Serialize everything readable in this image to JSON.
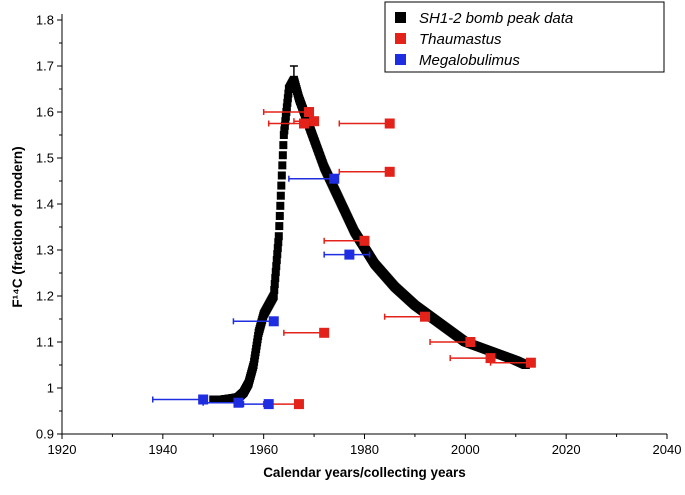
{
  "chart_data": {
    "type": "scatter",
    "xlabel": "Calendar years/collecting years",
    "ylabel": "F¹⁴C (fraction of modern)",
    "xlim": [
      1920,
      2040
    ],
    "ylim": [
      0.9,
      1.8
    ],
    "x_ticks": [
      "1920",
      "1940",
      "1960",
      "1980",
      "2000",
      "2020",
      "2040"
    ],
    "y_ticks": [
      "0.9",
      "1",
      "1.1",
      "1.2",
      "1.3",
      "1.4",
      "1.5",
      "1.6",
      "1.7",
      "1.8"
    ],
    "grid": false,
    "legend_position": "top-right",
    "series": [
      {
        "name": "SH1-2 bomb peak data",
        "color": "#000000",
        "marker": "square",
        "curve": [
          [
            1950,
            0.975
          ],
          [
            1952,
            0.975
          ],
          [
            1954,
            0.978
          ],
          [
            1955,
            0.98
          ],
          [
            1956,
            0.99
          ],
          [
            1957,
            1.01
          ],
          [
            1958,
            1.05
          ],
          [
            1959,
            1.12
          ],
          [
            1960,
            1.16
          ],
          [
            1961,
            1.18
          ],
          [
            1962,
            1.2
          ],
          [
            1963,
            1.33
          ],
          [
            1964,
            1.55
          ],
          [
            1965,
            1.65
          ],
          [
            1966,
            1.67
          ],
          [
            1967,
            1.63
          ],
          [
            1968,
            1.6
          ],
          [
            1970,
            1.54
          ],
          [
            1972,
            1.48
          ],
          [
            1975,
            1.41
          ],
          [
            1978,
            1.34
          ],
          [
            1982,
            1.27
          ],
          [
            1986,
            1.22
          ],
          [
            1990,
            1.18
          ],
          [
            1995,
            1.14
          ],
          [
            2000,
            1.1
          ],
          [
            2005,
            1.08
          ],
          [
            2010,
            1.06
          ],
          [
            2012,
            1.05
          ]
        ],
        "errorbars": [
          {
            "x": 1966,
            "y": 1.68,
            "yerr": 0.02
          }
        ]
      },
      {
        "name": "Thaumastus",
        "color": "#e32219",
        "marker": "square",
        "points": [
          {
            "x": 1969,
            "y": 1.6,
            "xerr_low": 9,
            "xerr_high": 0
          },
          {
            "x": 1970,
            "y": 1.58,
            "xerr_low": 4,
            "xerr_high": 0
          },
          {
            "x": 1968,
            "y": 1.575,
            "xerr_low": 7,
            "xerr_high": 0
          },
          {
            "x": 1985,
            "y": 1.575,
            "xerr_low": 10,
            "xerr_high": 0
          },
          {
            "x": 1985,
            "y": 1.47,
            "xerr_low": 10,
            "xerr_high": 0
          },
          {
            "x": 1980,
            "y": 1.32,
            "xerr_low": 8,
            "xerr_high": 0
          },
          {
            "x": 1972,
            "y": 1.12,
            "xerr_low": 8,
            "xerr_high": 0
          },
          {
            "x": 1992,
            "y": 1.155,
            "xerr_low": 8,
            "xerr_high": 0
          },
          {
            "x": 2001,
            "y": 1.1,
            "xerr_low": 8,
            "xerr_high": 0
          },
          {
            "x": 2005,
            "y": 1.065,
            "xerr_low": 8,
            "xerr_high": 0
          },
          {
            "x": 2013,
            "y": 1.055,
            "xerr_low": 8,
            "xerr_high": 0
          },
          {
            "x": 1967,
            "y": 0.965,
            "xerr_low": 7,
            "xerr_high": 0
          }
        ]
      },
      {
        "name": "Megalobulimus",
        "color": "#1f2de0",
        "marker": "square",
        "points": [
          {
            "x": 1974,
            "y": 1.455,
            "xerr_low": 9,
            "xerr_high": 0
          },
          {
            "x": 1977,
            "y": 1.29,
            "xerr_low": 5,
            "xerr_high": 4
          },
          {
            "x": 1962,
            "y": 1.145,
            "xerr_low": 8,
            "xerr_high": 0
          },
          {
            "x": 1948,
            "y": 0.975,
            "xerr_low": 10,
            "xerr_high": 0
          },
          {
            "x": 1955,
            "y": 0.968,
            "xerr_low": 7,
            "xerr_high": 0
          },
          {
            "x": 1961,
            "y": 0.965,
            "xerr_low": 5,
            "xerr_high": 0
          }
        ]
      }
    ]
  }
}
